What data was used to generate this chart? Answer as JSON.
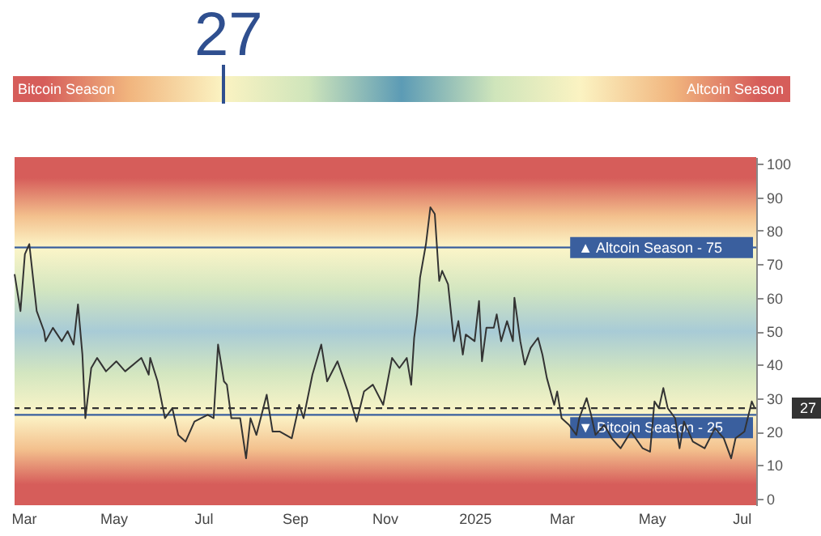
{
  "chart_data": {
    "type": "line",
    "annotations": [
      "27",
      "Bitcoin Season",
      "Altcoin Season"
    ],
    "x": [
      "2024-02-24",
      "2024-02-28",
      "2024-03-02",
      "2024-03-05",
      "2024-03-08",
      "2024-03-10",
      "2024-03-15",
      "2024-03-16",
      "2024-03-21",
      "2024-03-27",
      "2024-03-31",
      "2024-04-04",
      "2024-04-07",
      "2024-04-10",
      "2024-04-12",
      "2024-04-16",
      "2024-04-20",
      "2024-04-26",
      "2024-05-03",
      "2024-05-09",
      "2024-05-20",
      "2024-05-25",
      "2024-05-26",
      "2024-05-31",
      "2024-06-05",
      "2024-06-10",
      "2024-06-14",
      "2024-06-19",
      "2024-06-25",
      "2024-07-04",
      "2024-07-08",
      "2024-07-11",
      "2024-07-15",
      "2024-07-17",
      "2024-07-20",
      "2024-07-26",
      "2024-07-30",
      "2024-08-02",
      "2024-08-06",
      "2024-08-13",
      "2024-08-17",
      "2024-08-22",
      "2024-08-30",
      "2024-09-04",
      "2024-09-07",
      "2024-09-13",
      "2024-09-19",
      "2024-09-23",
      "2024-09-30",
      "2024-10-07",
      "2024-10-13",
      "2024-10-18",
      "2024-10-24",
      "2024-10-31",
      "2024-11-06",
      "2024-11-11",
      "2024-11-16",
      "2024-11-19",
      "2024-11-21",
      "2024-11-23",
      "2024-11-25",
      "2024-11-29",
      "2024-12-02",
      "2024-12-05",
      "2024-12-08",
      "2024-12-10",
      "2024-12-14",
      "2024-12-18",
      "2024-12-21",
      "2024-12-24",
      "2024-12-26",
      "2025-01-01",
      "2025-01-04",
      "2025-01-06",
      "2025-01-09",
      "2025-01-14",
      "2025-01-16",
      "2025-01-19",
      "2025-01-23",
      "2025-01-27",
      "2025-01-28",
      "2025-02-01",
      "2025-02-04",
      "2025-02-08",
      "2025-02-13",
      "2025-02-16",
      "2025-02-19",
      "2025-02-24",
      "2025-02-26",
      "2025-03-01",
      "2025-03-06",
      "2025-03-11",
      "2025-03-13",
      "2025-03-18",
      "2025-03-21",
      "2025-03-24",
      "2025-03-30",
      "2025-04-04",
      "2025-04-10",
      "2025-04-17",
      "2025-04-25",
      "2025-04-30",
      "2025-05-03",
      "2025-05-06",
      "2025-05-09",
      "2025-05-12",
      "2025-05-17",
      "2025-05-20",
      "2025-05-23",
      "2025-05-29",
      "2025-06-06",
      "2025-06-13",
      "2025-06-19",
      "2025-06-24",
      "2025-06-27",
      "2025-07-03",
      "2025-07-08",
      "2025-07-10"
    ],
    "series": [
      {
        "color": "#333333",
        "values": [
          67,
          56,
          73,
          76,
          64,
          56,
          50,
          47,
          51,
          47,
          50,
          46,
          58,
          43,
          24,
          39,
          42,
          38,
          41,
          38,
          42,
          37,
          42,
          35,
          24,
          27,
          19,
          17,
          23,
          25,
          24,
          46,
          35,
          34,
          24,
          24,
          12,
          24,
          19,
          31,
          20,
          20,
          18,
          28,
          24,
          37,
          46,
          35,
          41,
          32,
          23,
          32,
          34,
          28,
          42,
          39,
          42,
          34,
          48,
          55,
          66,
          76,
          87,
          85,
          65,
          68,
          64,
          47,
          53,
          43,
          49,
          47,
          59,
          41,
          51,
          51,
          55,
          47,
          53,
          47,
          60,
          47,
          40,
          45,
          48,
          43,
          36,
          28,
          32,
          24,
          22,
          19,
          24,
          30,
          25,
          19,
          22,
          18,
          15,
          20,
          15,
          14,
          29,
          27,
          33,
          27,
          24,
          15,
          23,
          17,
          15,
          21,
          18,
          12,
          18,
          20,
          29,
          27
        ]
      }
    ],
    "xlim": [
      "2024-02-24",
      "2025-07-11"
    ],
    "xticks": [
      {
        "value": "2024-03-01",
        "label": "Mar"
      },
      {
        "value": "2024-05-01",
        "label": "May"
      },
      {
        "value": "2024-07-01",
        "label": "Jul"
      },
      {
        "value": "2024-09-01",
        "label": "Sep"
      },
      {
        "value": "2024-11-01",
        "label": "Nov"
      },
      {
        "value": "2025-01-01",
        "label": "2025"
      },
      {
        "value": "2025-03-01",
        "label": "Mar"
      },
      {
        "value": "2025-05-01",
        "label": "May"
      },
      {
        "value": "2025-07-01",
        "label": "Jul"
      }
    ],
    "ylim": [
      -2,
      102
    ],
    "yticks": [
      0,
      10,
      20,
      30,
      40,
      50,
      60,
      70,
      80,
      90,
      100
    ],
    "ref_lines": [
      {
        "axis": "y",
        "value": 75,
        "label": "▲ Altcoin Season - 75",
        "color": "#3a5f9e"
      },
      {
        "axis": "y",
        "value": 25,
        "label": "▼ Bitcoin Season - 25",
        "color": "#3a5f9e"
      },
      {
        "axis": "y",
        "value": 27,
        "label": "27",
        "color": "#333333",
        "line_style": "dashed"
      }
    ],
    "grid": false,
    "line_style": "solid",
    "marker": "none"
  }
}
